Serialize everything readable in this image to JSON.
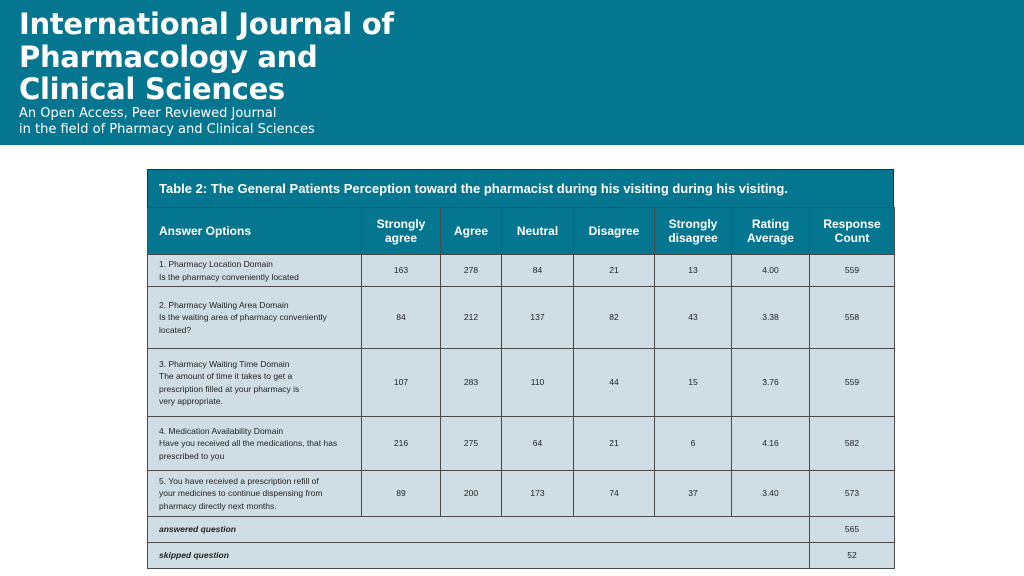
{
  "journal": {
    "title_lines": [
      "International Journal of",
      "Pharmacology and",
      "Clinical Sciences"
    ],
    "subtitle_lines": [
      "An Open Access, Peer Reviewed Journal",
      "in the field of Pharmacy and Clinical Sciences"
    ]
  },
  "table": {
    "caption": "Table 2: The General Patients Perception toward the pharmacist during his visiting during his visiting.",
    "headers": {
      "options": "Answer Options",
      "strongly_agree": [
        "Strongly",
        "agree"
      ],
      "agree": "Agree",
      "neutral": "Neutral",
      "disagree": "Disagree",
      "strongly_disagree": [
        "Strongly",
        "disagree"
      ],
      "rating_average": [
        "Rating",
        "Average"
      ],
      "response_count": [
        "Response",
        "Count"
      ]
    },
    "rows": [
      {
        "option_lines": [
          "1. Pharmacy Location Domain",
          "Is the pharmacy conveniently located"
        ],
        "strongly_agree": "163",
        "agree": "278",
        "neutral": "84",
        "disagree": "21",
        "strongly_disagree": "13",
        "rating_average": "4.00",
        "response_count": "559"
      },
      {
        "option_lines": [
          "2. Pharmacy Waiting Area Domain",
          "Is the waiting area of pharmacy conveniently",
          "located?"
        ],
        "strongly_agree": "84",
        "agree": "212",
        "neutral": "137",
        "disagree": "82",
        "strongly_disagree": "43",
        "rating_average": "3.38",
        "response_count": "558"
      },
      {
        "option_lines": [
          "3. Pharmacy Waiting Time Domain",
          "The amount of time it takes to get a",
          "prescription filled at your pharmacy is",
          "very appropriate."
        ],
        "strongly_agree": "107",
        "agree": "283",
        "neutral": "110",
        "disagree": "44",
        "strongly_disagree": "15",
        "rating_average": "3.76",
        "response_count": "559"
      },
      {
        "option_lines": [
          "4. Medication Availability Domain",
          "Have you received all the medications, that has",
          "prescribed to you"
        ],
        "strongly_agree": "216",
        "agree": "275",
        "neutral": "64",
        "disagree": "21",
        "strongly_disagree": "6",
        "rating_average": "4.16",
        "response_count": "582"
      },
      {
        "option_lines": [
          "5. You have received a prescription refill of",
          "your medicines to continue dispensing from",
          "pharmacy directly next months."
        ],
        "strongly_agree": "89",
        "agree": "200",
        "neutral": "173",
        "disagree": "74",
        "strongly_disagree": "37",
        "rating_average": "3.40",
        "response_count": "573"
      }
    ],
    "answered": {
      "label": "answered question",
      "value": "565"
    },
    "skipped": {
      "label": "skipped question",
      "value": "52"
    }
  }
}
